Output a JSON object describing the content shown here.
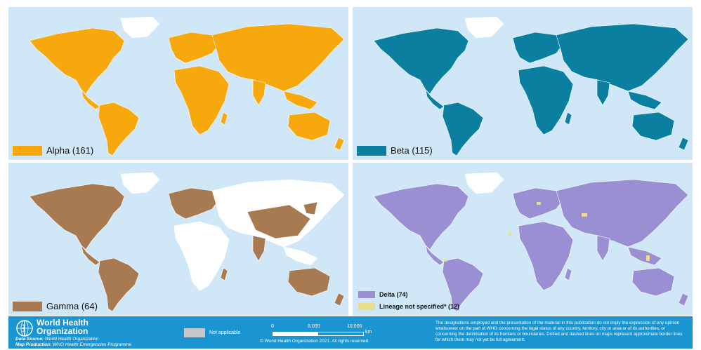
{
  "panels": [
    {
      "id": "alpha",
      "label": "Alpha (161)",
      "color": "#f6a80c",
      "coverage": "wide"
    },
    {
      "id": "beta",
      "label": "Beta (115)",
      "color": "#0a7fa0",
      "coverage": "wide"
    },
    {
      "id": "gamma",
      "label": "Gamma (64)",
      "color": "#a87a52",
      "coverage": "partial"
    },
    {
      "id": "delta",
      "legend": [
        {
          "label": "Delta (74)",
          "color": "#9b8fd4"
        },
        {
          "label": "Lineage not specified* (12)",
          "color": "#e9dd8b"
        }
      ],
      "color": "#9b8fd4",
      "coverage": "wide"
    }
  ],
  "colors": {
    "ocean": "#cfe7f7",
    "no_data": "#ffffff",
    "not_applicable": "#c8c8c8",
    "footer": "#1a95d2"
  },
  "footer": {
    "org_line1": "World Health",
    "org_line2": "Organization",
    "data_source_label": "Data Source:",
    "data_source": "World Health Organization",
    "map_production_label": "Map Production:",
    "map_production": "WHO Health Emergencies Programme",
    "not_applicable": "Not applicable",
    "scale_0": "0",
    "scale_mid": "5,000",
    "scale_end": "10,000",
    "scale_unit": "km",
    "copyright": "© World Health Organization  2021.  All rights reserved.",
    "disclaimer": "The designations employed and the presentation of the material in this publication do not imply the expression of any opinion whatsoever on the part of WHO concerning the legal status of any country, territory, city or area or of its authorities, or concerning the delimitation of its frontiers or boundaries. Dotted and dashed lines on maps represent approximate border lines for which there may not yet be full agreement."
  }
}
